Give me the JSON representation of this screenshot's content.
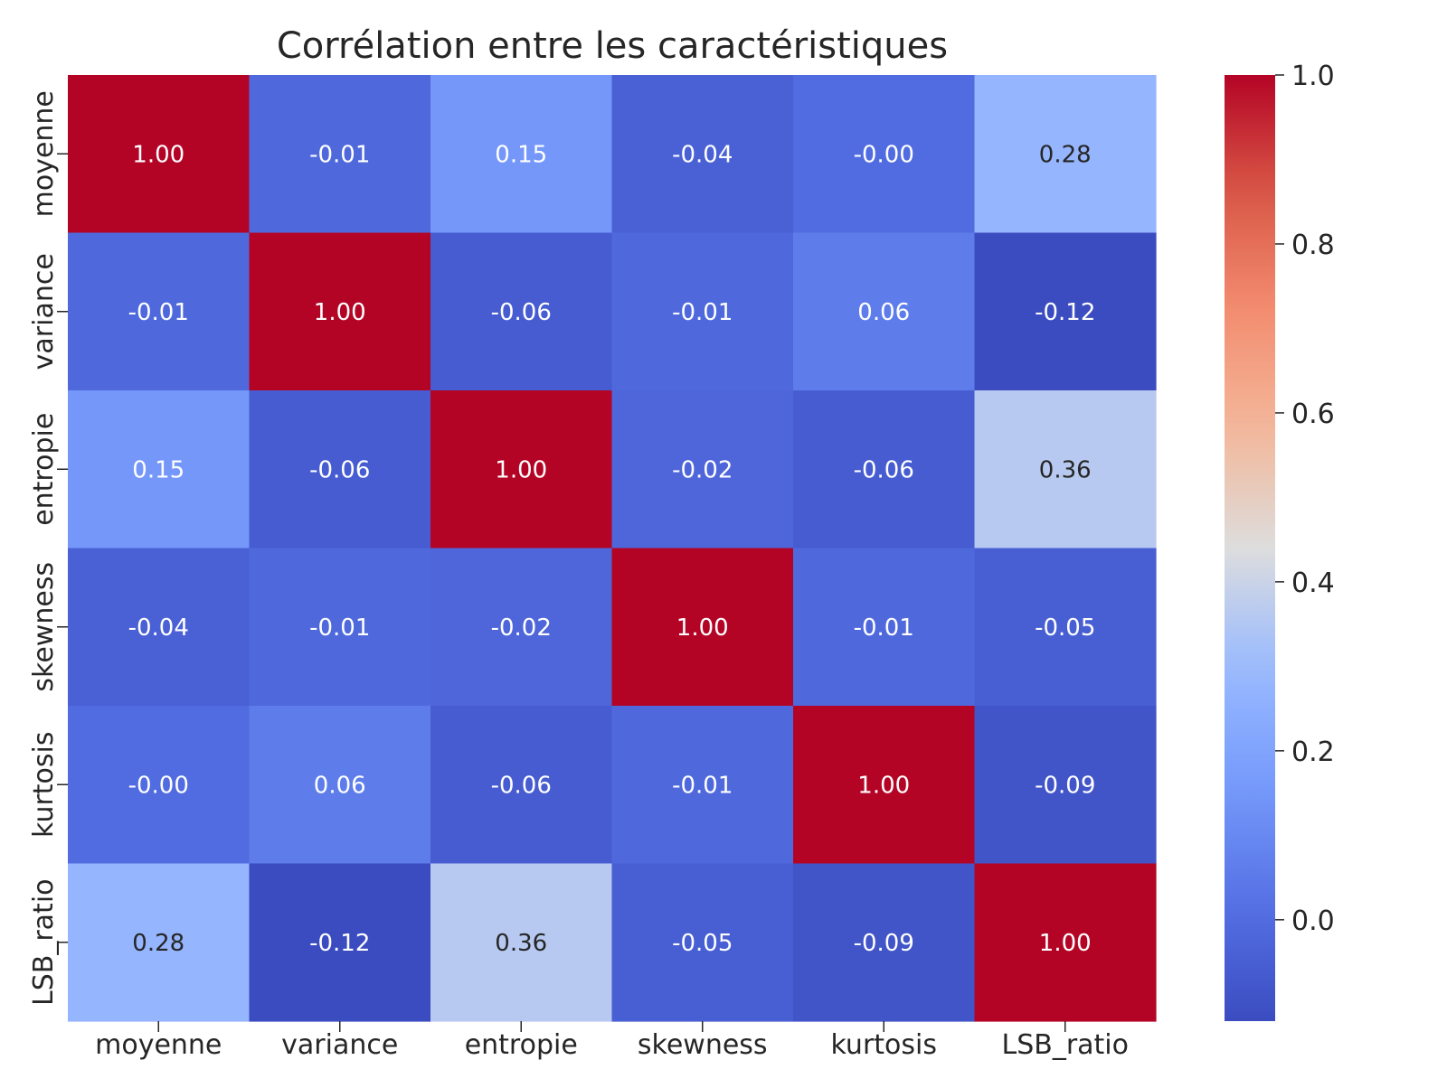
{
  "chart_data": {
    "type": "heatmap",
    "title": "Corrélation entre les caractéristiques",
    "xlabel": "",
    "ylabel": "",
    "categories": [
      "moyenne",
      "variance",
      "entropie",
      "skewness",
      "kurtosis",
      "LSB_ratio"
    ],
    "value_labels": [
      [
        "1.00",
        "-0.01",
        "0.15",
        "-0.04",
        "-0.00",
        "0.28"
      ],
      [
        "-0.01",
        "1.00",
        "-0.06",
        "-0.01",
        "0.06",
        "-0.12"
      ],
      [
        "0.15",
        "-0.06",
        "1.00",
        "-0.02",
        "-0.06",
        "0.36"
      ],
      [
        "-0.04",
        "-0.01",
        "-0.02",
        "1.00",
        "-0.01",
        "-0.05"
      ],
      [
        "-0.00",
        "0.06",
        "-0.06",
        "-0.01",
        "1.00",
        "-0.09"
      ],
      [
        "0.28",
        "-0.12",
        "0.36",
        "-0.05",
        "-0.09",
        "1.00"
      ]
    ],
    "values": [
      [
        1.0,
        -0.01,
        0.15,
        -0.04,
        -0.0,
        0.28
      ],
      [
        -0.01,
        1.0,
        -0.06,
        -0.01,
        0.06,
        -0.12
      ],
      [
        0.15,
        -0.06,
        1.0,
        -0.02,
        -0.06,
        0.36
      ],
      [
        -0.04,
        -0.01,
        -0.02,
        1.0,
        -0.01,
        -0.05
      ],
      [
        -0.0,
        0.06,
        -0.06,
        -0.01,
        1.0,
        -0.09
      ],
      [
        0.28,
        -0.12,
        0.36,
        -0.05,
        -0.09,
        1.0
      ]
    ],
    "colormap": "coolwarm",
    "colorbar": {
      "range": [
        -0.12,
        1.0
      ],
      "ticks": [
        0.0,
        0.2,
        0.4,
        0.6,
        0.8,
        1.0
      ],
      "tick_labels": [
        "0.0",
        "0.2",
        "0.4",
        "0.6",
        "0.8",
        "1.0"
      ]
    },
    "annot_text_colors": {
      "dark": "#262626",
      "light": "#ffffff"
    }
  }
}
